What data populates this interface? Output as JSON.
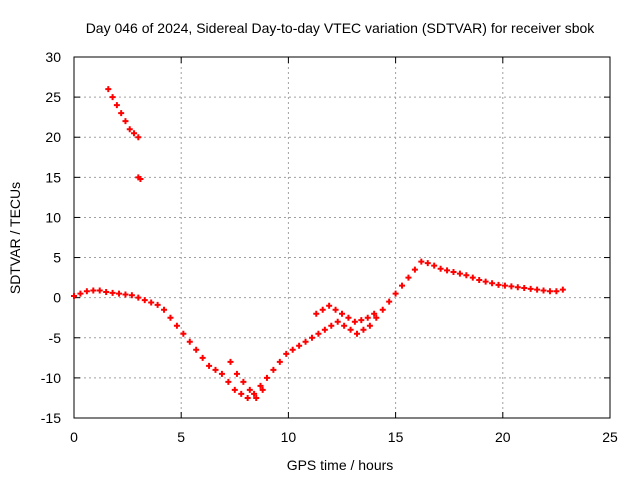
{
  "chart_data": {
    "type": "scatter",
    "title": "Day 046 of 2024, Sidereal Day-to-day VTEC variation (SDTVAR) for receiver sbok",
    "xlabel": "GPS time / hours",
    "ylabel": "SDTVAR / TECUs",
    "xlim": [
      0,
      25
    ],
    "ylim": [
      -15,
      30
    ],
    "xticks": [
      "0",
      "5",
      "10",
      "15",
      "20",
      "25"
    ],
    "yticks": [
      "-15",
      "-10",
      "-5",
      "0",
      "5",
      "10",
      "15",
      "20",
      "25",
      "30"
    ],
    "grid": true,
    "marker": "plus",
    "color": "#ff0000",
    "series": [
      {
        "name": "SDTVAR",
        "x": [
          0.0,
          0.3,
          0.6,
          0.9,
          1.2,
          1.5,
          1.8,
          2.1,
          2.4,
          2.7,
          3.0,
          3.3,
          3.6,
          3.9,
          4.2,
          4.5,
          4.8,
          5.1,
          5.4,
          5.7,
          6.0,
          6.3,
          6.6,
          6.9,
          7.2,
          7.5,
          7.8,
          8.1,
          8.4,
          8.7,
          9.0,
          9.3,
          9.6,
          9.9,
          10.2,
          10.5,
          10.8,
          11.1,
          11.4,
          11.7,
          12.0,
          12.3,
          12.6,
          12.9,
          13.2,
          13.5,
          13.8,
          14.1,
          14.4,
          14.7,
          15.0,
          15.3,
          15.6,
          15.9,
          16.2,
          16.5,
          16.8,
          17.1,
          17.4,
          17.7,
          18.0,
          18.3,
          18.6,
          18.9,
          19.2,
          19.5,
          19.8,
          20.1,
          20.4,
          20.7,
          21.0,
          21.3,
          21.6,
          21.9,
          22.2,
          22.5,
          22.8,
          1.6,
          1.8,
          2.0,
          2.2,
          2.4,
          2.6,
          2.8,
          3.0,
          3.0,
          3.1,
          11.3,
          11.6,
          11.9,
          12.2,
          12.5,
          12.8,
          13.1,
          13.4,
          13.7,
          14.0,
          7.3,
          7.6,
          7.9,
          8.2,
          8.5,
          8.8
        ],
        "y": [
          0.2,
          0.5,
          0.8,
          0.9,
          0.9,
          0.7,
          0.6,
          0.5,
          0.4,
          0.3,
          0.0,
          -0.3,
          -0.6,
          -0.9,
          -1.5,
          -2.5,
          -3.5,
          -4.5,
          -5.5,
          -6.5,
          -7.5,
          -8.5,
          -9.0,
          -9.5,
          -10.5,
          -11.5,
          -12.0,
          -12.5,
          -12.0,
          -11.0,
          -10.0,
          -9.0,
          -8.0,
          -7.0,
          -6.5,
          -6.0,
          -5.5,
          -5.0,
          -4.5,
          -4.0,
          -3.5,
          -3.0,
          -3.5,
          -4.0,
          -4.5,
          -4.0,
          -3.5,
          -2.5,
          -1.5,
          -0.5,
          0.5,
          1.5,
          2.5,
          3.5,
          4.5,
          4.3,
          4.0,
          3.6,
          3.4,
          3.2,
          3.0,
          2.8,
          2.5,
          2.2,
          2.0,
          1.8,
          1.6,
          1.5,
          1.4,
          1.3,
          1.2,
          1.1,
          1.0,
          0.9,
          0.8,
          0.8,
          1.0,
          26.0,
          25.0,
          24.0,
          23.0,
          22.0,
          21.0,
          20.5,
          20.0,
          15.0,
          14.8,
          -2.0,
          -1.5,
          -1.0,
          -1.5,
          -2.0,
          -2.5,
          -3.0,
          -2.8,
          -2.5,
          -2.0,
          -8.0,
          -9.5,
          -10.5,
          -11.5,
          -12.5,
          -11.5
        ]
      }
    ]
  }
}
